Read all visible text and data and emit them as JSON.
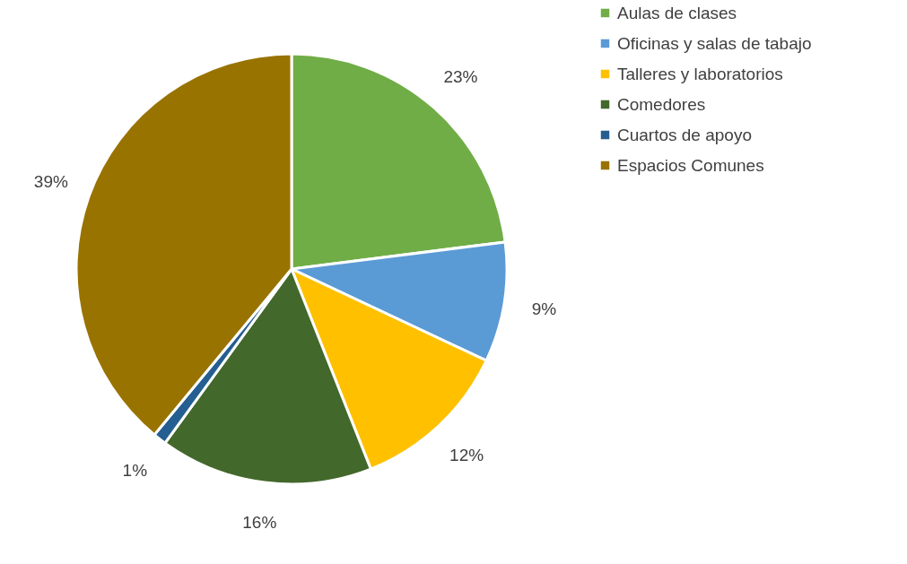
{
  "chart_data": {
    "type": "pie",
    "categories": [
      "Aulas de clases",
      "Oficinas y salas de tabajo",
      "Talleres y laboratorios",
      "Comedores",
      "Cuartos de apoyo",
      "Espacios Comunes"
    ],
    "values": [
      23,
      9,
      12,
      16,
      1,
      39
    ],
    "colors": [
      "#70ad47",
      "#5b9bd5",
      "#ffc000",
      "#43682b",
      "#255e91",
      "#997300"
    ],
    "value_labels": [
      "23%",
      "9%",
      "12%",
      "16%",
      "1%",
      "39%"
    ],
    "legend": "right"
  }
}
